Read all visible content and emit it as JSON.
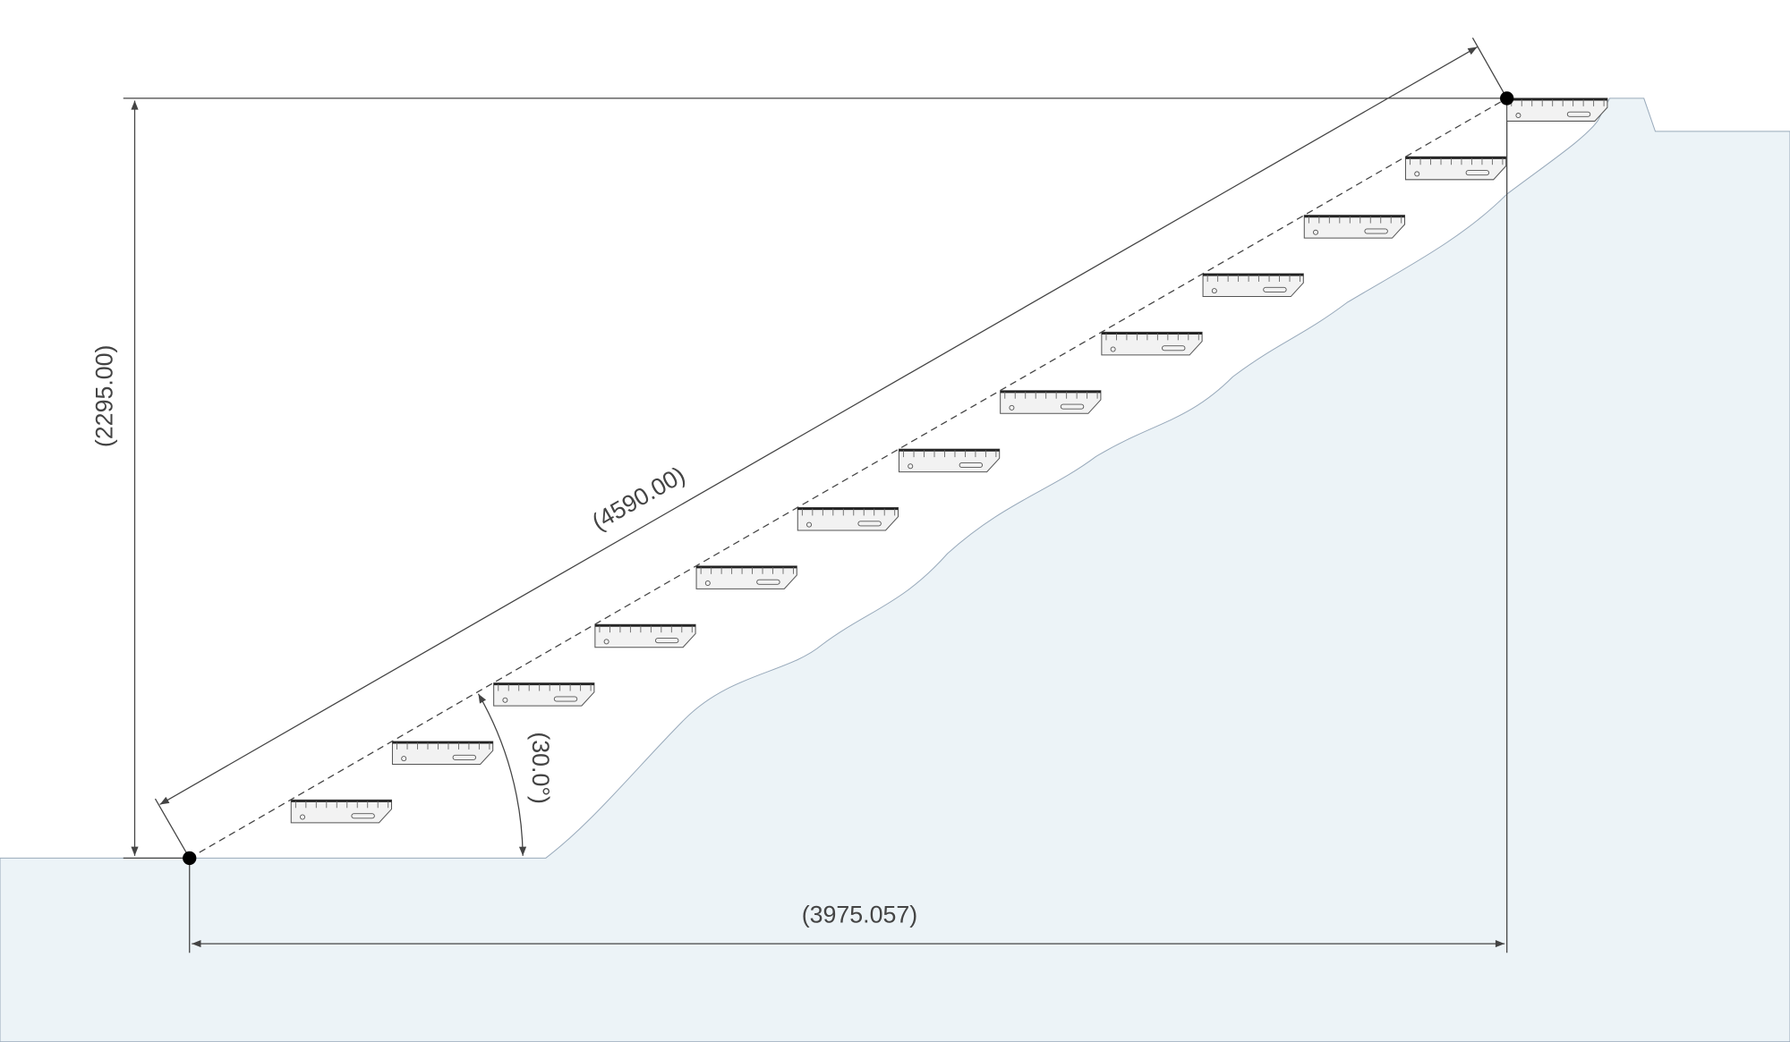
{
  "dimensions": {
    "slope_length": "(4590.00)",
    "height": "(2295.00)",
    "horizontal_length": "(3975.057)",
    "angle": "(30.0°)"
  }
}
